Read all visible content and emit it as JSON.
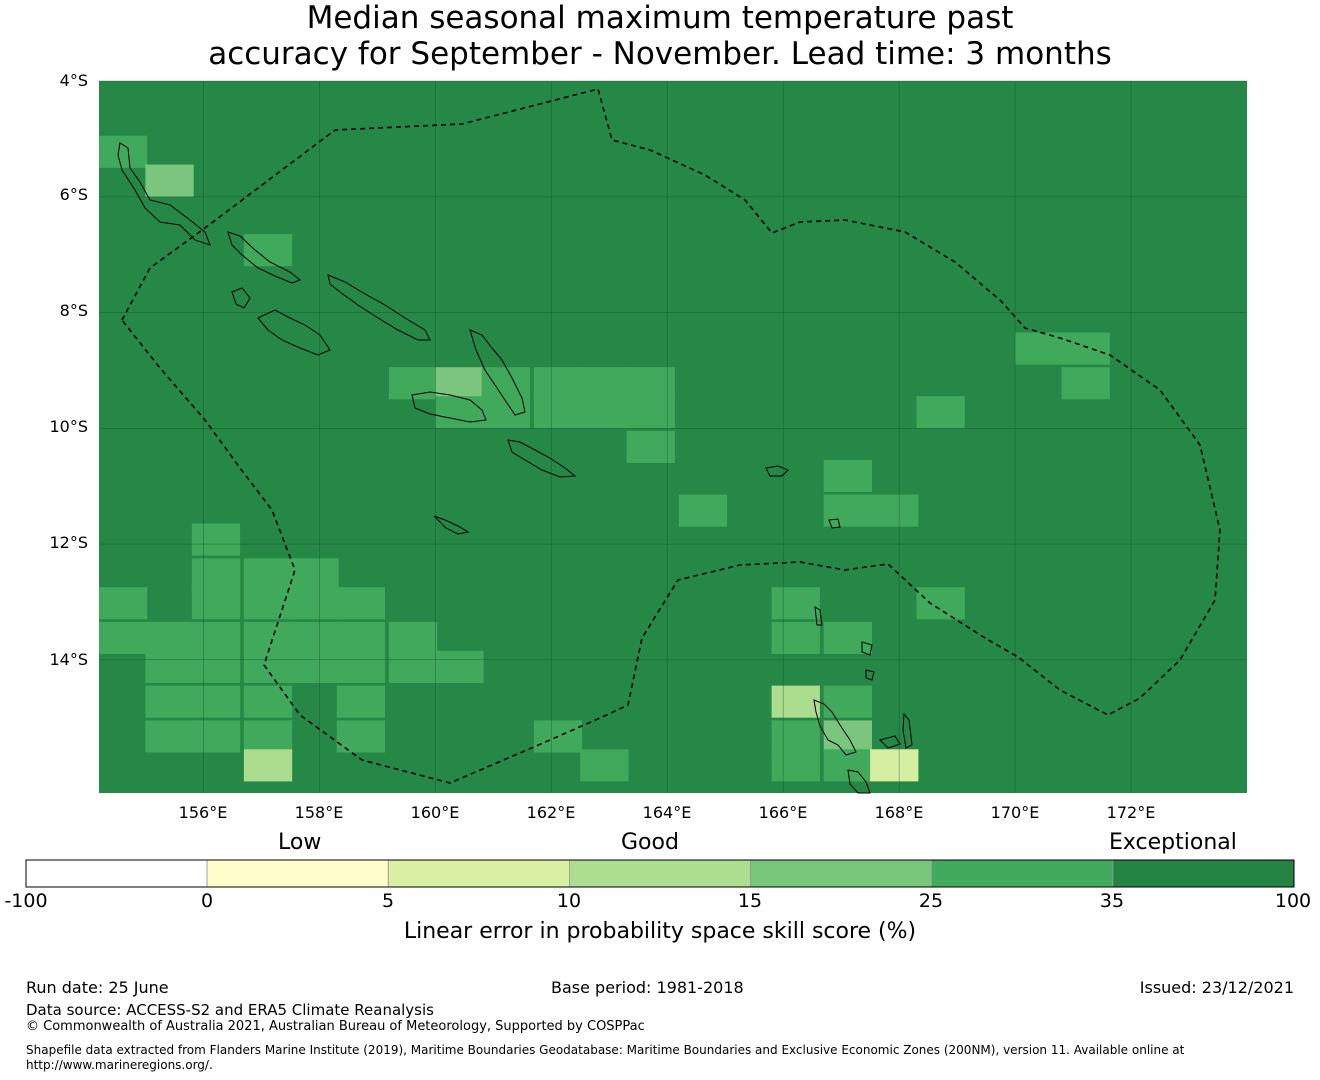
{
  "title_line1": "Median seasonal maximum temperature past",
  "title_line2": "accuracy for September - November. Lead time: 3 months",
  "map": {
    "lat_labels": [
      "4°S",
      "6°S",
      "8°S",
      "10°S",
      "12°S",
      "14°S"
    ],
    "lon_labels": [
      "156°E",
      "158°E",
      "160°E",
      "162°E",
      "164°E",
      "166°E",
      "168°E",
      "170°E",
      "172°E"
    ],
    "lon_range": [
      154.2,
      174.0
    ],
    "lat_range": [
      -16.3,
      -4.0
    ],
    "base_color": "#258846",
    "cells": [
      {
        "lon": 154.2,
        "lat": -5.5,
        "color": "#41a95b"
      },
      {
        "lon": 155.0,
        "lat": -6.0,
        "color": "#7bc57e"
      },
      {
        "lon": 156.7,
        "lat": -7.2,
        "color": "#41a95b"
      },
      {
        "lon": 159.2,
        "lat": -9.5,
        "color": "#41a95b"
      },
      {
        "lon": 160.0,
        "lat": -9.5,
        "color": "#7bc57e"
      },
      {
        "lon": 160.8,
        "lat": -9.5,
        "color": "#41a95b"
      },
      {
        "lon": 161.7,
        "lat": -9.5,
        "color": "#41a95b"
      },
      {
        "lon": 162.5,
        "lat": -9.5,
        "color": "#41a95b"
      },
      {
        "lon": 163.3,
        "lat": -9.5,
        "color": "#41a95b"
      },
      {
        "lon": 160.0,
        "lat": -10.0,
        "color": "#41a95b"
      },
      {
        "lon": 160.8,
        "lat": -10.0,
        "color": "#41a95b"
      },
      {
        "lon": 161.7,
        "lat": -10.0,
        "color": "#41a95b"
      },
      {
        "lon": 162.5,
        "lat": -10.0,
        "color": "#41a95b"
      },
      {
        "lon": 163.3,
        "lat": -10.0,
        "color": "#41a95b"
      },
      {
        "lon": 163.3,
        "lat": -10.6,
        "color": "#41a95b"
      },
      {
        "lon": 170.0,
        "lat": -8.9,
        "color": "#41a95b"
      },
      {
        "lon": 170.8,
        "lat": -8.9,
        "color": "#41a95b"
      },
      {
        "lon": 170.8,
        "lat": -9.5,
        "color": "#41a95b"
      },
      {
        "lon": 168.3,
        "lat": -10.0,
        "color": "#41a95b"
      },
      {
        "lon": 166.7,
        "lat": -11.1,
        "color": "#41a95b"
      },
      {
        "lon": 166.7,
        "lat": -11.7,
        "color": "#41a95b"
      },
      {
        "lon": 167.5,
        "lat": -11.7,
        "color": "#41a95b"
      },
      {
        "lon": 164.2,
        "lat": -11.7,
        "color": "#41a95b"
      },
      {
        "lon": 168.3,
        "lat": -13.3,
        "color": "#41a95b"
      },
      {
        "lon": 165.8,
        "lat": -13.3,
        "color": "#41a95b"
      },
      {
        "lon": 165.8,
        "lat": -13.9,
        "color": "#41a95b"
      },
      {
        "lon": 166.7,
        "lat": -13.9,
        "color": "#41a95b"
      },
      {
        "lon": 165.8,
        "lat": -15.0,
        "color": "#acdc8d"
      },
      {
        "lon": 166.7,
        "lat": -15.0,
        "color": "#41a95b"
      },
      {
        "lon": 165.8,
        "lat": -15.6,
        "color": "#41a95b"
      },
      {
        "lon": 166.7,
        "lat": -15.6,
        "color": "#7bc57e"
      },
      {
        "lon": 165.8,
        "lat": -16.1,
        "color": "#41a95b"
      },
      {
        "lon": 166.7,
        "lat": -16.1,
        "color": "#41a95b"
      },
      {
        "lon": 167.5,
        "lat": -16.1,
        "color": "#d6eea1"
      },
      {
        "lon": 155.8,
        "lat": -12.2,
        "color": "#41a95b"
      },
      {
        "lon": 155.8,
        "lat": -12.8,
        "color": "#41a95b"
      },
      {
        "lon": 156.7,
        "lat": -12.8,
        "color": "#41a95b"
      },
      {
        "lon": 157.5,
        "lat": -12.8,
        "color": "#41a95b"
      },
      {
        "lon": 154.2,
        "lat": -13.3,
        "color": "#41a95b"
      },
      {
        "lon": 155.8,
        "lat": -13.3,
        "color": "#41a95b"
      },
      {
        "lon": 156.7,
        "lat": -13.3,
        "color": "#41a95b"
      },
      {
        "lon": 157.5,
        "lat": -13.3,
        "color": "#41a95b"
      },
      {
        "lon": 158.3,
        "lat": -13.3,
        "color": "#41a95b"
      },
      {
        "lon": 154.2,
        "lat": -13.9,
        "color": "#41a95b"
      },
      {
        "lon": 155.0,
        "lat": -13.9,
        "color": "#41a95b"
      },
      {
        "lon": 155.8,
        "lat": -13.9,
        "color": "#41a95b"
      },
      {
        "lon": 156.7,
        "lat": -13.9,
        "color": "#41a95b"
      },
      {
        "lon": 157.5,
        "lat": -13.9,
        "color": "#41a95b"
      },
      {
        "lon": 158.3,
        "lat": -13.9,
        "color": "#41a95b"
      },
      {
        "lon": 159.2,
        "lat": -13.9,
        "color": "#41a95b"
      },
      {
        "lon": 155.0,
        "lat": -14.4,
        "color": "#41a95b"
      },
      {
        "lon": 155.8,
        "lat": -14.4,
        "color": "#41a95b"
      },
      {
        "lon": 156.7,
        "lat": -14.4,
        "color": "#41a95b"
      },
      {
        "lon": 157.5,
        "lat": -14.4,
        "color": "#41a95b"
      },
      {
        "lon": 158.3,
        "lat": -14.4,
        "color": "#41a95b"
      },
      {
        "lon": 159.2,
        "lat": -14.4,
        "color": "#41a95b"
      },
      {
        "lon": 160.0,
        "lat": -14.4,
        "color": "#41a95b"
      },
      {
        "lon": 155.0,
        "lat": -15.0,
        "color": "#41a95b"
      },
      {
        "lon": 155.8,
        "lat": -15.0,
        "color": "#41a95b"
      },
      {
        "lon": 156.7,
        "lat": -15.0,
        "color": "#41a95b"
      },
      {
        "lon": 158.3,
        "lat": -15.0,
        "color": "#41a95b"
      },
      {
        "lon": 155.0,
        "lat": -15.6,
        "color": "#41a95b"
      },
      {
        "lon": 155.8,
        "lat": -15.6,
        "color": "#41a95b"
      },
      {
        "lon": 156.7,
        "lat": -15.6,
        "color": "#41a95b"
      },
      {
        "lon": 158.3,
        "lat": -15.6,
        "color": "#41a95b"
      },
      {
        "lon": 156.7,
        "lat": -16.1,
        "color": "#acdc8d"
      },
      {
        "lon": 161.7,
        "lat": -15.6,
        "color": "#41a95b"
      },
      {
        "lon": 162.5,
        "lat": -16.1,
        "color": "#41a95b"
      }
    ]
  },
  "colorbar": {
    "categories": [
      "Low",
      "Good",
      "Exceptional"
    ],
    "ticks": [
      "-100",
      "0",
      "5",
      "10",
      "15",
      "25",
      "35",
      "100"
    ],
    "colors": [
      "#ffffff",
      "#ffffcc",
      "#d9f0a3",
      "#addd8e",
      "#78c679",
      "#41ab5d",
      "#238443"
    ],
    "title": "Linear error in probability space skill score (%)"
  },
  "footer": {
    "run_date": "Run date: 25 June",
    "base_period": "Base period: 1981-2018",
    "issued": "Issued: 23/12/2021",
    "data_source": "Data source: ACCESS-S2 and ERA5 Climate Reanalysis",
    "copyright": "© Commonwealth of Australia 2021, Australian Bureau of Meteorology, Supported by COSPPac",
    "shapefile_line1": "Shapefile data extracted from Flanders Marine Institute (2019), Maritime Boundaries Geodatabase: Maritime Boundaries and Exclusive Economic Zones (200NM), version 11. Available online at",
    "shapefile_line2": "http://www.marineregions.org/."
  }
}
